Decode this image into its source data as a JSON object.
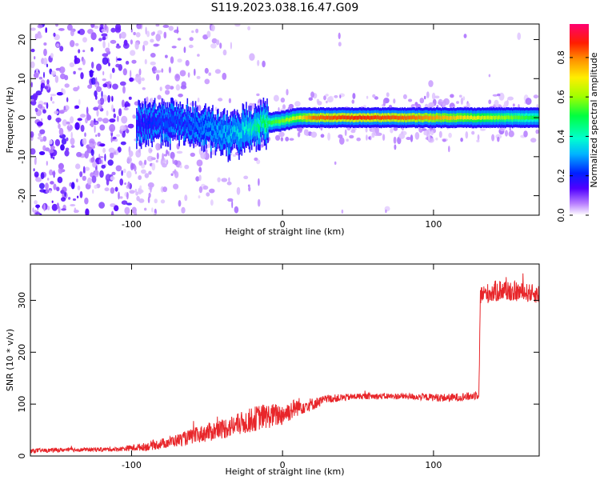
{
  "title": "S119.2023.038.16.47.G09",
  "chart_data": [
    {
      "type": "heatmap",
      "xlabel": "Height of straight line (km)",
      "ylabel": "Frequency (Hz)",
      "xlim": [
        -167,
        170
      ],
      "ylim": [
        -25,
        24
      ],
      "x_ticks": [
        -100,
        0,
        100
      ],
      "y_ticks": [
        -20,
        -10,
        0,
        10,
        20
      ],
      "colorbar": {
        "label": "Normalized spectral amplitude",
        "range": [
          0,
          0.97
        ],
        "ticks": [
          0.0,
          0.2,
          0.4,
          0.6,
          0.8
        ]
      },
      "ridge": [
        {
          "x": -95,
          "y": -1.5,
          "amp": 0.2
        },
        {
          "x": -80,
          "y": -1.0,
          "amp": 0.25
        },
        {
          "x": -65,
          "y": -1.5,
          "amp": 0.25
        },
        {
          "x": -50,
          "y": -3.0,
          "amp": 0.3
        },
        {
          "x": -35,
          "y": -4.5,
          "amp": 0.35
        },
        {
          "x": -25,
          "y": -3.0,
          "amp": 0.4
        },
        {
          "x": -15,
          "y": -1.5,
          "amp": 0.5
        },
        {
          "x": 0,
          "y": -0.8,
          "amp": 0.6
        },
        {
          "x": 10,
          "y": 0.0,
          "amp": 0.7
        },
        {
          "x": 20,
          "y": 0.0,
          "amp": 0.85
        },
        {
          "x": 50,
          "y": 0.0,
          "amp": 0.9
        },
        {
          "x": 85,
          "y": 0.0,
          "amp": 0.85
        },
        {
          "x": 130,
          "y": 0.0,
          "amp": 0.7
        },
        {
          "x": 170,
          "y": 0.0,
          "amp": 0.5
        }
      ]
    },
    {
      "type": "line",
      "xlabel": "Height of straight line (km)",
      "ylabel": "SNR (10 * v/v)",
      "xlim": [
        -167,
        170
      ],
      "ylim": [
        0,
        370
      ],
      "x_ticks": [
        -100,
        0,
        100
      ],
      "y_ticks": [
        0,
        100,
        200,
        300
      ],
      "color": "#e8262a",
      "series": [
        {
          "x": [
            -167,
            -140,
            -110,
            -90,
            -70,
            -50,
            -30,
            -15,
            0,
            10,
            20,
            30,
            50,
            80,
            110,
            125,
            130,
            131,
            145,
            160,
            170
          ],
          "y": [
            10,
            12,
            13,
            18,
            30,
            45,
            60,
            75,
            80,
            95,
            100,
            110,
            115,
            115,
            112,
            115,
            120,
            310,
            320,
            315,
            312
          ],
          "noise": [
            4,
            4,
            4,
            8,
            12,
            18,
            22,
            25,
            22,
            18,
            12,
            8,
            6,
            6,
            8,
            8,
            10,
            18,
            22,
            18,
            18
          ]
        }
      ]
    }
  ]
}
